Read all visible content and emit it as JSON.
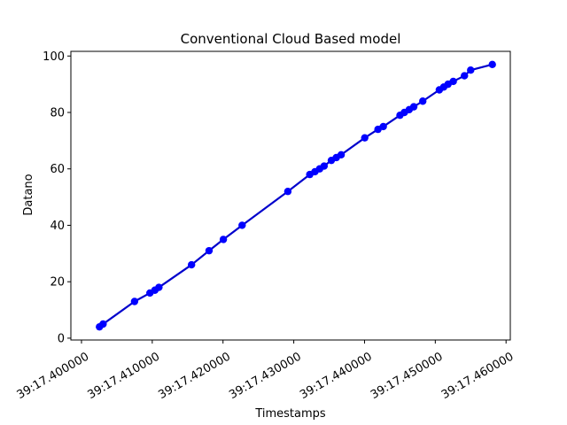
{
  "chart_data": {
    "type": "line",
    "title": "Conventional Cloud Based model",
    "xlabel": "Timestamps",
    "ylabel": "Datano",
    "x_tick_labels": [
      "39:17.400000",
      "39:17.410000",
      "39:17.420000",
      "39:17.430000",
      "39:17.440000",
      "39:17.450000",
      "39:17.460000"
    ],
    "x_tick_values": [
      0.4,
      0.41,
      0.42,
      0.43,
      0.44,
      0.45,
      0.46
    ],
    "y_tick_labels": [
      "0",
      "20",
      "40",
      "60",
      "80",
      "100"
    ],
    "y_tick_values": [
      0,
      20,
      40,
      60,
      80,
      100
    ],
    "xlim": [
      0.3985,
      0.4606
    ],
    "ylim": [
      -0.65,
      101.65
    ],
    "grid": false,
    "line_color": "#0000cc",
    "marker_color": "#0000ff",
    "series": [
      {
        "x": [
          0.40254,
          0.40305,
          0.4075,
          0.40967,
          0.41037,
          0.41094,
          0.41555,
          0.41803,
          0.42005,
          0.4227,
          0.42916,
          0.43226,
          0.43299,
          0.43365,
          0.43429,
          0.43531,
          0.43601,
          0.4367,
          0.44003,
          0.4419,
          0.44265,
          0.44501,
          0.44563,
          0.44631,
          0.44696,
          0.44823,
          0.45057,
          0.45119,
          0.4518,
          0.45254,
          0.45412,
          0.455,
          0.45806
        ],
        "y": [
          4,
          5,
          13,
          16,
          17,
          18,
          26,
          31,
          35,
          40,
          52,
          58,
          59,
          60,
          61,
          63,
          64,
          65,
          71,
          74,
          75,
          79,
          80,
          81,
          82,
          84,
          88,
          89,
          90,
          91,
          93,
          95,
          97
        ]
      }
    ]
  }
}
